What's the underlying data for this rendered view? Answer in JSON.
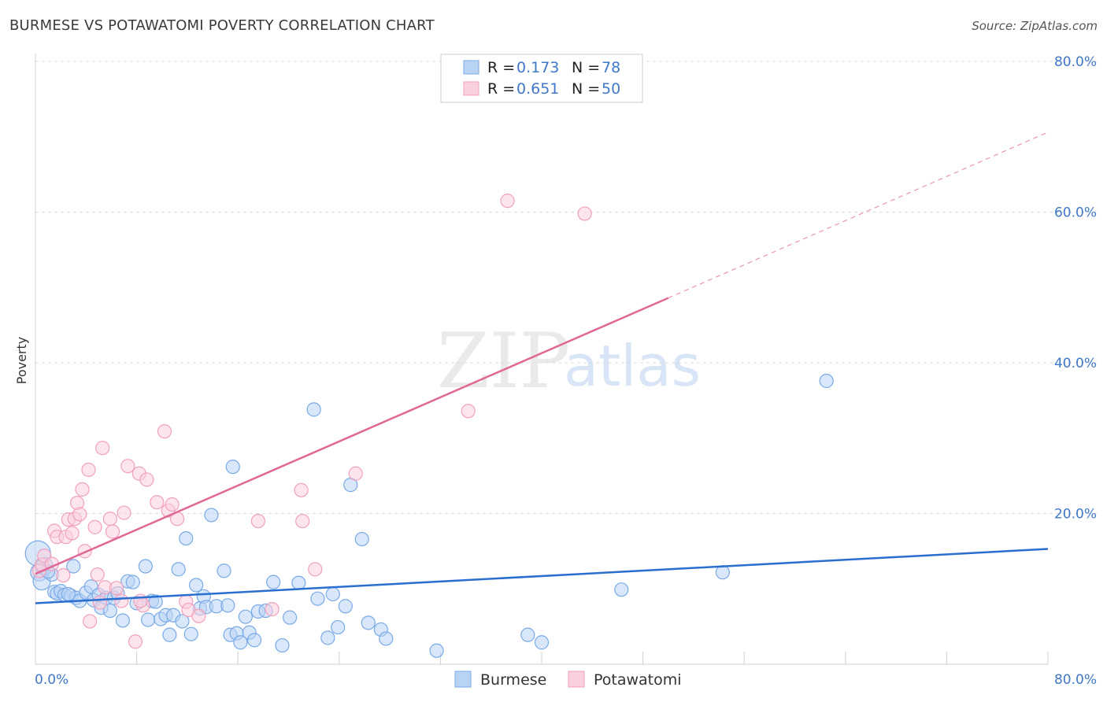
{
  "header": {
    "title": "BURMESE VS POTAWATOMI POVERTY CORRELATION CHART",
    "source": "Source: ZipAtlas.com"
  },
  "watermark": {
    "zip": "ZIP",
    "atlas": "atlas"
  },
  "chart_data": {
    "type": "scatter",
    "title": "BURMESE VS POTAWATOMI POVERTY CORRELATION CHART",
    "ylabel": "Poverty",
    "xlabel": "",
    "xlim": [
      0,
      80
    ],
    "ylim": [
      0,
      80
    ],
    "x_tick_labels": [
      "0.0%",
      "80.0%"
    ],
    "y_ticks": [
      {
        "value": 20,
        "label": "20.0%"
      },
      {
        "value": 40,
        "label": "40.0%"
      },
      {
        "value": 60,
        "label": "60.0%"
      },
      {
        "value": 80,
        "label": "80.0%"
      }
    ],
    "grid": true,
    "legend_position": "top-center",
    "stats": [
      {
        "series": "Burmese",
        "r_label": "R =",
        "r": "0.173",
        "n_label": "N =",
        "n": "78"
      },
      {
        "series": "Potawatomi",
        "r_label": "R =",
        "r": "0.651",
        "n_label": "N =",
        "n": "50"
      }
    ],
    "series": [
      {
        "name": "Burmese",
        "color": "#7aaae6",
        "fill": "#b9d3f5",
        "trend_color": "#2a6fcf",
        "trend": {
          "x": [
            0,
            80
          ],
          "y": [
            8.1,
            15.3
          ],
          "dashed_from": null
        },
        "points": [
          [
            0.2,
            14.7
          ],
          [
            0.3,
            12.2
          ],
          [
            0.5,
            11.0
          ],
          [
            0.7,
            13.0
          ],
          [
            1.3,
            11.9
          ],
          [
            1.5,
            9.6
          ],
          [
            1.7,
            9.4
          ],
          [
            2.0,
            9.7
          ],
          [
            2.3,
            9.2
          ],
          [
            2.8,
            9.1
          ],
          [
            3.0,
            13.0
          ],
          [
            3.2,
            8.8
          ],
          [
            3.5,
            8.4
          ],
          [
            4.0,
            9.5
          ],
          [
            4.4,
            10.3
          ],
          [
            4.6,
            8.5
          ],
          [
            5.0,
            9.2
          ],
          [
            5.2,
            7.5
          ],
          [
            5.6,
            8.8
          ],
          [
            5.9,
            7.1
          ],
          [
            6.2,
            8.8
          ],
          [
            6.5,
            9.4
          ],
          [
            6.9,
            5.8
          ],
          [
            7.3,
            11.0
          ],
          [
            7.7,
            10.9
          ],
          [
            8.0,
            8.1
          ],
          [
            8.7,
            13.0
          ],
          [
            8.9,
            5.9
          ],
          [
            9.2,
            8.4
          ],
          [
            9.5,
            8.3
          ],
          [
            9.9,
            6.0
          ],
          [
            10.3,
            6.5
          ],
          [
            10.6,
            3.9
          ],
          [
            10.9,
            6.5
          ],
          [
            11.3,
            12.6
          ],
          [
            11.6,
            5.7
          ],
          [
            11.9,
            16.7
          ],
          [
            12.3,
            4.0
          ],
          [
            12.7,
            10.5
          ],
          [
            13.0,
            7.4
          ],
          [
            13.3,
            9.0
          ],
          [
            13.5,
            7.6
          ],
          [
            13.9,
            19.8
          ],
          [
            14.3,
            7.7
          ],
          [
            14.9,
            12.4
          ],
          [
            15.2,
            7.8
          ],
          [
            15.4,
            3.9
          ],
          [
            15.6,
            26.2
          ],
          [
            15.9,
            4.1
          ],
          [
            16.2,
            2.9
          ],
          [
            16.6,
            6.3
          ],
          [
            16.9,
            4.2
          ],
          [
            17.3,
            3.2
          ],
          [
            17.6,
            7.0
          ],
          [
            18.2,
            7.1
          ],
          [
            18.8,
            10.9
          ],
          [
            19.5,
            2.5
          ],
          [
            20.1,
            6.2
          ],
          [
            20.8,
            10.8
          ],
          [
            22.0,
            33.8
          ],
          [
            22.3,
            8.7
          ],
          [
            23.1,
            3.5
          ],
          [
            23.5,
            9.3
          ],
          [
            23.9,
            4.9
          ],
          [
            24.5,
            7.7
          ],
          [
            24.9,
            23.8
          ],
          [
            25.8,
            16.6
          ],
          [
            26.3,
            5.5
          ],
          [
            27.3,
            4.6
          ],
          [
            27.7,
            3.4
          ],
          [
            31.7,
            1.8
          ],
          [
            38.9,
            3.9
          ],
          [
            40.0,
            2.9
          ],
          [
            46.3,
            9.9
          ],
          [
            54.3,
            12.2
          ],
          [
            62.5,
            37.6
          ],
          [
            1.0,
            12.3
          ],
          [
            2.6,
            9.3
          ]
        ]
      },
      {
        "name": "Potawatomi",
        "color": "#f0a0bd",
        "fill": "#fbd0de",
        "trend_color": "#e06896",
        "trend": {
          "x": [
            0,
            50
          ],
          "y": [
            12.0,
            48.6
          ],
          "dashed_to": {
            "x": 80,
            "y": 70.6
          }
        },
        "points": [
          [
            0.3,
            12.4
          ],
          [
            0.5,
            13.2
          ],
          [
            0.7,
            14.4
          ],
          [
            1.3,
            13.3
          ],
          [
            1.5,
            17.7
          ],
          [
            1.7,
            16.9
          ],
          [
            2.2,
            11.8
          ],
          [
            2.4,
            16.9
          ],
          [
            2.6,
            19.2
          ],
          [
            2.9,
            17.4
          ],
          [
            3.1,
            19.3
          ],
          [
            3.3,
            21.4
          ],
          [
            3.5,
            19.9
          ],
          [
            3.7,
            23.2
          ],
          [
            3.9,
            15.0
          ],
          [
            4.2,
            25.8
          ],
          [
            4.3,
            5.7
          ],
          [
            4.7,
            18.2
          ],
          [
            4.9,
            11.9
          ],
          [
            5.1,
            8.2
          ],
          [
            5.3,
            28.7
          ],
          [
            5.5,
            10.2
          ],
          [
            5.9,
            19.3
          ],
          [
            6.1,
            17.6
          ],
          [
            6.4,
            10.1
          ],
          [
            6.8,
            8.4
          ],
          [
            7.0,
            20.1
          ],
          [
            7.3,
            26.3
          ],
          [
            7.9,
            3.0
          ],
          [
            8.2,
            25.3
          ],
          [
            8.5,
            7.8
          ],
          [
            8.8,
            24.5
          ],
          [
            9.6,
            21.5
          ],
          [
            10.2,
            30.9
          ],
          [
            10.5,
            20.4
          ],
          [
            10.8,
            21.2
          ],
          [
            11.2,
            19.3
          ],
          [
            11.9,
            8.3
          ],
          [
            12.1,
            7.2
          ],
          [
            12.9,
            6.4
          ],
          [
            17.6,
            19.0
          ],
          [
            18.7,
            7.3
          ],
          [
            21.0,
            23.1
          ],
          [
            21.1,
            19.0
          ],
          [
            22.1,
            12.6
          ],
          [
            25.3,
            25.3
          ],
          [
            34.2,
            33.6
          ],
          [
            37.3,
            61.5
          ],
          [
            43.4,
            59.8
          ],
          [
            8.3,
            8.4
          ]
        ]
      }
    ]
  },
  "bottom_legend": [
    {
      "label": "Burmese"
    },
    {
      "label": "Potawatomi"
    }
  ]
}
